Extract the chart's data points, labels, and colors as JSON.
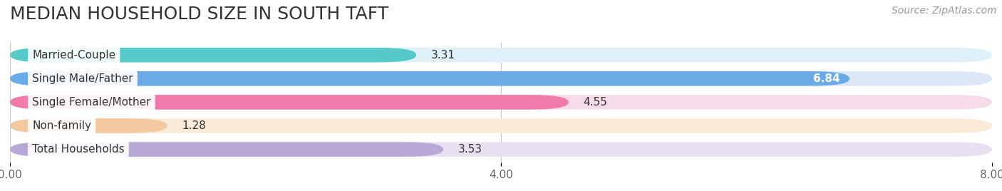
{
  "title": "MEDIAN HOUSEHOLD SIZE IN SOUTH TAFT",
  "source": "Source: ZipAtlas.com",
  "categories": [
    "Married-Couple",
    "Single Male/Father",
    "Single Female/Mother",
    "Non-family",
    "Total Households"
  ],
  "values": [
    3.31,
    6.84,
    4.55,
    1.28,
    3.53
  ],
  "bar_colors": [
    "#56c9c9",
    "#6aaae6",
    "#f07aaa",
    "#f5c9a0",
    "#b8a8d8"
  ],
  "bar_bg_colors": [
    "#e0f0f8",
    "#dce8f8",
    "#f5dce8",
    "#faebd8",
    "#e8e0f0"
  ],
  "xlim": [
    0,
    8.0
  ],
  "xticks": [
    0.0,
    4.0,
    8.0
  ],
  "xtick_labels": [
    "0.00",
    "4.00",
    "8.00"
  ],
  "value_label_inside": [
    false,
    true,
    false,
    false,
    false
  ],
  "title_fontsize": 18,
  "source_fontsize": 10,
  "label_fontsize": 11,
  "value_fontsize": 11,
  "background_color": "#ffffff"
}
